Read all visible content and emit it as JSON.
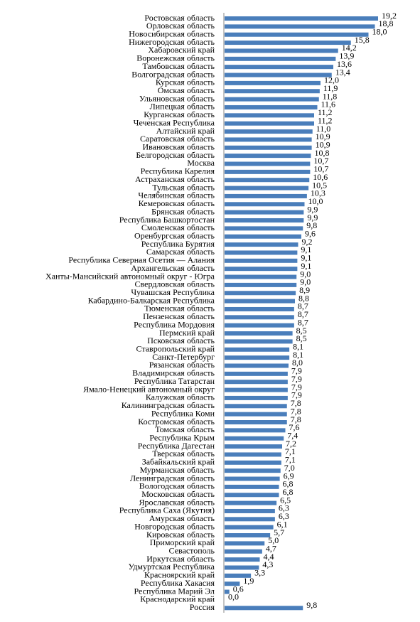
{
  "chart_data": {
    "type": "bar",
    "orientation": "horizontal",
    "color": "#4a7ebb",
    "categories": [
      "Ростовская область",
      "Орловская область",
      "Новосибирская область",
      "Нижегородская область",
      "Хабаровский край",
      "Воронежская область",
      "Тамбовская область",
      "Волгоградская область",
      "Курская область",
      "Омская область",
      "Ульяновская область",
      "Липецкая область",
      "Курганская область",
      "Чеченская Республика",
      "Алтайский край",
      "Саратовская область",
      "Ивановская область",
      "Белгородская область",
      "Москва",
      "Республика Карелия",
      "Астраханская область",
      "Тульская область",
      "Челябинская область",
      "Кемеровская область",
      "Брянская область",
      "Республика Башкортостан",
      "Смоленская область",
      "Оренбургская область",
      "Республика Бурятия",
      "Самарская область",
      "Республика Северная Осетия — Алания",
      "Архангельская область",
      "Ханты-Мансийский автономный округ - Югра",
      "Свердловская область",
      "Чувашская Республика",
      "Кабардино-Балкарская Республика",
      "Тюменская область",
      "Пензенская область",
      "Республика Мордовия",
      "Пермский край",
      "Псковская область",
      "Ставропольский край",
      "Санкт-Петербург",
      "Рязанская область",
      "Владимирская область",
      "Республика Татарстан",
      "Ямало-Ненецкий автономный округ",
      "Калужская область",
      "Калининградская область",
      "Республика Коми",
      "Костромская область",
      "Томская область",
      "Республика Крым",
      "Республика Дагестан",
      "Тверская область",
      "Забайкальский край",
      "Мурманская область",
      "Ленинградская область",
      "Вологодская область",
      "Московская область",
      "Ярославская область",
      "Республика Саха (Якутия)",
      "Амурская область",
      "Новгородская область",
      "Кировская область",
      "Приморский край",
      "Севастополь",
      "Иркутская область",
      "Удмуртская Республика",
      "Красноярский край",
      "Республика Хакасия",
      "Республика Марий Эл",
      "Краснодарский край",
      "Россия"
    ],
    "values": [
      19.2,
      18.8,
      18.0,
      15.8,
      14.2,
      13.9,
      13.6,
      13.4,
      12.0,
      11.9,
      11.8,
      11.6,
      11.2,
      11.2,
      11.0,
      10.9,
      10.9,
      10.8,
      10.7,
      10.7,
      10.6,
      10.5,
      10.3,
      10.0,
      9.9,
      9.9,
      9.8,
      9.6,
      9.2,
      9.1,
      9.1,
      9.1,
      9.0,
      9.0,
      8.9,
      8.8,
      8.7,
      8.7,
      8.7,
      8.5,
      8.5,
      8.1,
      8.1,
      8.0,
      7.9,
      7.9,
      7.9,
      7.9,
      7.8,
      7.8,
      7.8,
      7.6,
      7.4,
      7.2,
      7.1,
      7.1,
      7.0,
      6.9,
      6.8,
      6.8,
      6.5,
      6.3,
      6.3,
      6.1,
      5.7,
      5.0,
      4.7,
      4.4,
      4.3,
      3.3,
      1.9,
      0.6,
      0.0,
      9.8
    ],
    "value_labels": [
      "19,2",
      "18,8",
      "18,0",
      "15,8",
      "14,2",
      "13,9",
      "13,6",
      "13,4",
      "12,0",
      "11,9",
      "11,8",
      "11,6",
      "11,2",
      "11,2",
      "11,0",
      "10,9",
      "10,9",
      "10,8",
      "10,7",
      "10,7",
      "10,6",
      "10,5",
      "10,3",
      "10,0",
      "9,9",
      "9,9",
      "9,8",
      "9,6",
      "9,2",
      "9,1",
      "9,1",
      "9,1",
      "9,0",
      "9,0",
      "8,9",
      "8,8",
      "8,7",
      "8,7",
      "8,7",
      "8,5",
      "8,5",
      "8,1",
      "8,1",
      "8,0",
      "7,9",
      "7,9",
      "7,9",
      "7,9",
      "7,8",
      "7,8",
      "7,8",
      "7,6",
      "7,4",
      "7,2",
      "7,1",
      "7,1",
      "7,0",
      "6,9",
      "6,8",
      "6,8",
      "6,5",
      "6,3",
      "6,3",
      "6,1",
      "5,7",
      "5,0",
      "4,7",
      "4,4",
      "4,3",
      "3,3",
      "1,9",
      "0,6",
      "0,0",
      "9,8"
    ]
  }
}
